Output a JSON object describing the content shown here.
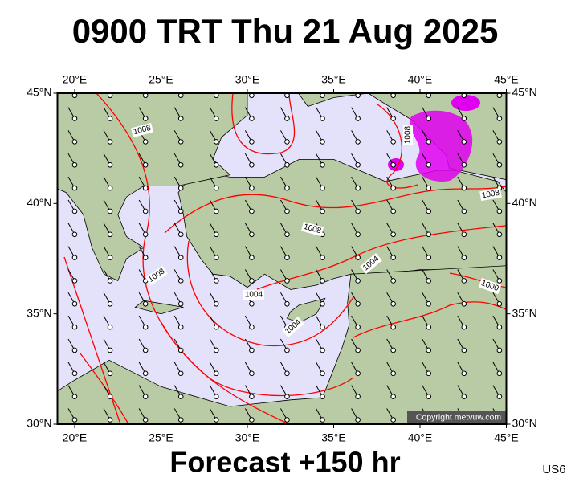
{
  "header": {
    "title": "0900 TRT Thu 21 Aug 2025"
  },
  "map": {
    "xlim": [
      19,
      45
    ],
    "ylim": [
      30,
      45
    ],
    "xticks": [
      {
        "value": 20,
        "label": "20°E"
      },
      {
        "value": 25,
        "label": "25°E"
      },
      {
        "value": 30,
        "label": "30°E"
      },
      {
        "value": 35,
        "label": "35°E"
      },
      {
        "value": 40,
        "label": "40°E"
      },
      {
        "value": 45,
        "label": "45°E"
      }
    ],
    "yticks": [
      {
        "value": 30,
        "label": "30°N"
      },
      {
        "value": 35,
        "label": "35°N"
      },
      {
        "value": 40,
        "label": "40°N"
      },
      {
        "value": 45,
        "label": "45°N"
      }
    ],
    "isobar_labels": [
      1008,
      1008,
      1008,
      1008,
      1008,
      1004,
      1004,
      1004,
      1000
    ],
    "copyright": "Copyright metvuw.com"
  },
  "footer": {
    "forecast": "Forecast +150 hr",
    "code": "US6"
  }
}
